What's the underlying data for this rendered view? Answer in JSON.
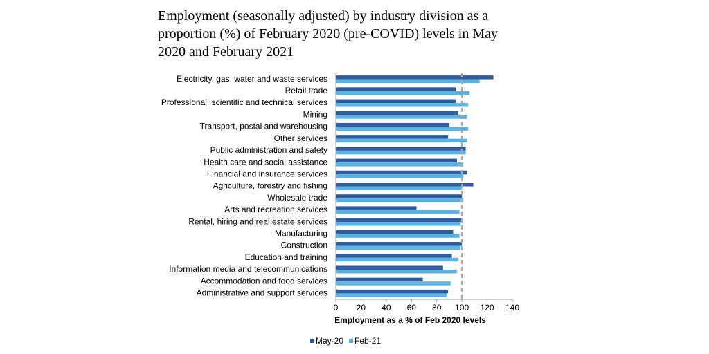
{
  "chart_data": {
    "type": "hbar",
    "title": "Employment (seasonally adjusted) by industry division as a proportion (%) of February 2020 (pre-COVID) levels in May 2020 and February 2021",
    "x_label": "Employment as a % of Feb 2020 levels",
    "categories": [
      "Electricity, gas, water and waste services",
      "Retail trade",
      "Professional, scientific and technical services",
      "Mining",
      "Transport, postal and warehousing",
      "Other services",
      "Public administration and safety",
      "Health care and social assistance",
      "Financial and insurance services",
      "Agriculture, forestry and fishing",
      "Wholesale trade",
      "Arts and recreation services",
      "Rental, hiring and real estate services",
      "Manufacturing",
      "Construction",
      "Education and training",
      "Information media and telecommunications",
      "Accommodation and food services",
      "Administrative and support services"
    ],
    "series": [
      {
        "name": "May-20",
        "color": "#2e5c9e",
        "values": [
          125,
          95,
          95,
          97,
          90,
          89,
          103,
          96,
          104,
          109,
          100,
          64,
          100,
          93,
          100,
          92,
          85,
          69,
          89
        ]
      },
      {
        "name": "Feb-21",
        "color": "#5ab4e3",
        "values": [
          114,
          106,
          105,
          104,
          105,
          104,
          103,
          101,
          101,
          100,
          101,
          98,
          99,
          98,
          99,
          97,
          96,
          91,
          88
        ]
      }
    ],
    "xlim": [
      0,
      140
    ],
    "xticks": [
      0,
      20,
      40,
      60,
      80,
      100,
      120,
      140
    ],
    "reference_line": 100,
    "legend": "bottom"
  }
}
